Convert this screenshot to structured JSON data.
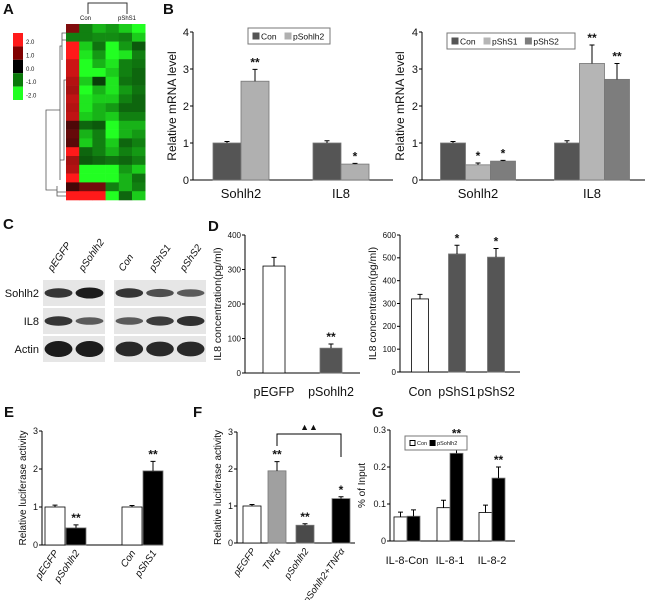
{
  "chart_data": [
    {
      "panel": "A",
      "type": "heatmap",
      "column_groups": [
        "Con",
        "pShS1"
      ],
      "color_scale": {
        "labels": [
          "2.0",
          "1.0",
          "0.0",
          "-1.0",
          "-2.0"
        ],
        "colors": [
          "#ff1a1a",
          "#800000",
          "#000000",
          "#0a7a0a",
          "#22ff22"
        ]
      },
      "values": [
        [
          1.0,
          -1.0,
          -1.4,
          -1.2,
          -1.6,
          -2.0
        ],
        [
          -1.0,
          -1.0,
          -1.1,
          -1.1,
          -1.0,
          -1.6
        ],
        [
          2.0,
          -1.6,
          -0.9,
          -2.0,
          -1.2,
          -0.7
        ],
        [
          2.0,
          -1.8,
          -1.2,
          -2.0,
          -1.8,
          -1.0
        ],
        [
          1.6,
          -2.0,
          -1.4,
          -1.8,
          -1.0,
          -0.9
        ],
        [
          1.6,
          -2.0,
          -2.0,
          -1.6,
          -1.0,
          -0.8
        ],
        [
          1.4,
          -1.6,
          -0.5,
          -1.8,
          -0.9,
          -0.8
        ],
        [
          1.3,
          -2.0,
          -1.4,
          -1.8,
          -1.2,
          -0.9
        ],
        [
          1.5,
          -1.8,
          -1.6,
          -1.6,
          -1.0,
          -0.8
        ],
        [
          1.4,
          -1.8,
          -1.4,
          -1.2,
          -0.8,
          -0.8
        ],
        [
          1.5,
          -1.6,
          -1.4,
          -1.6,
          -1.0,
          -1.0
        ],
        [
          0.6,
          -0.8,
          -0.7,
          -2.0,
          -1.4,
          -1.4
        ],
        [
          0.8,
          -1.4,
          -1.0,
          -2.0,
          -1.4,
          -1.2
        ],
        [
          0.7,
          -1.6,
          -1.0,
          -1.6,
          -0.8,
          -1.0
        ],
        [
          2.0,
          -0.8,
          -1.0,
          -1.4,
          -1.0,
          -1.2
        ],
        [
          1.3,
          -0.7,
          -0.8,
          -0.9,
          -0.8,
          -1.0
        ],
        [
          1.4,
          -2.0,
          -2.0,
          -2.0,
          -1.2,
          -1.6
        ],
        [
          2.0,
          -2.0,
          -2.0,
          -2.0,
          -1.4,
          -0.9
        ],
        [
          0.5,
          0.9,
          0.9,
          -1.0,
          -1.4,
          -1.0
        ],
        [
          2.0,
          2.0,
          2.0,
          -2.0,
          -0.8,
          -1.6
        ]
      ]
    },
    {
      "panel": "B",
      "type": "bar",
      "categories": [
        "Sohlh2",
        "IL8"
      ],
      "ylabel": "Relative mRNA level",
      "ylim": [
        0,
        4
      ],
      "yticks": [
        "0",
        "1",
        "2",
        "3",
        "4"
      ],
      "series": [
        {
          "name": "Con",
          "color": "#555555",
          "values": [
            1.0,
            1.0
          ],
          "errors": [
            0.04,
            0.06
          ],
          "sig": [
            "",
            ""
          ]
        },
        {
          "name": "pSohlh2",
          "color": "#b0b0b0",
          "values": [
            2.67,
            0.43
          ],
          "errors": [
            0.32,
            0.02
          ],
          "sig": [
            "**",
            "*"
          ]
        }
      ]
    },
    {
      "panel": "",
      "type": "bar",
      "categories": [
        "Sohlh2",
        "IL8"
      ],
      "ylabel": "Relative mRNA level",
      "ylim": [
        0,
        4
      ],
      "yticks": [
        "0",
        "1",
        "2",
        "3",
        "4"
      ],
      "series": [
        {
          "name": "Con",
          "color": "#555555",
          "values": [
            1.0,
            1.0
          ],
          "errors": [
            0.04,
            0.06
          ],
          "sig": [
            "",
            ""
          ]
        },
        {
          "name": "pShS1",
          "color": "#b5b5b5",
          "values": [
            0.41,
            3.15
          ],
          "errors": [
            0.05,
            0.5
          ],
          "sig": [
            "*",
            "**"
          ]
        },
        {
          "name": "pShS2",
          "color": "#7d7d7d",
          "values": [
            0.51,
            2.72
          ],
          "errors": [
            0.02,
            0.43
          ],
          "sig": [
            "*",
            "**"
          ]
        }
      ]
    },
    {
      "panel": "D",
      "type": "bar",
      "categories": [
        "pEGFP",
        "pSohlh2"
      ],
      "ylabel": "IL8 concentration(pg/ml)",
      "ylim": [
        0,
        400
      ],
      "yticks": [
        "0",
        "100",
        "200",
        "300",
        "400"
      ],
      "series": [
        {
          "name": "IL8",
          "colors": [
            "#ffffff",
            "#555555"
          ],
          "values": [
            310,
            72
          ],
          "errors": [
            25,
            12
          ],
          "sig": [
            "",
            "**"
          ]
        }
      ]
    },
    {
      "panel": "",
      "type": "bar",
      "categories": [
        "Con",
        "pShS1",
        "pShS2"
      ],
      "ylabel": "IL8 concentration(pg/ml)",
      "ylim": [
        0,
        600
      ],
      "yticks": [
        "0",
        "100",
        "200",
        "300",
        "400",
        "500",
        "600"
      ],
      "series": [
        {
          "name": "IL8",
          "colors": [
            "#ffffff",
            "#555555",
            "#555555"
          ],
          "values": [
            320,
            517,
            503
          ],
          "errors": [
            20,
            38,
            38
          ],
          "sig": [
            "",
            "*",
            "*"
          ]
        }
      ]
    },
    {
      "panel": "E",
      "type": "bar",
      "categories": [
        "pEGFP",
        "pSohlh2",
        "Con",
        "pShS1"
      ],
      "ylabel": "Relative luciferase activity",
      "ylim": [
        0,
        3
      ],
      "yticks": [
        "0",
        "1",
        "2",
        "3"
      ],
      "series": [
        {
          "name": "luciferase",
          "colors": [
            "#ffffff",
            "#000000",
            "#ffffff",
            "#000000"
          ],
          "values": [
            1.0,
            0.45,
            1.0,
            1.95
          ],
          "errors": [
            0.05,
            0.08,
            0.04,
            0.25
          ],
          "sig": [
            "",
            "**",
            "",
            "**"
          ]
        }
      ]
    },
    {
      "panel": "F",
      "type": "bar",
      "categories": [
        "pEGFP",
        "TNFα",
        "pSohlh2",
        "pSohlh2+TNFα"
      ],
      "ylabel": "Relative luciferase activity",
      "ylim": [
        0,
        3
      ],
      "yticks": [
        "0",
        "1",
        "2",
        "3"
      ],
      "comparison": {
        "between": [
          "TNFα",
          "pSohlh2+TNFα"
        ],
        "marker": "▲▲"
      },
      "series": [
        {
          "name": "luciferase",
          "colors": [
            "#ffffff",
            "#a0a0a0",
            "#4a4a4a",
            "#000000"
          ],
          "values": [
            1.0,
            1.95,
            0.48,
            1.2
          ],
          "errors": [
            0.04,
            0.25,
            0.04,
            0.05
          ],
          "sig": [
            "",
            "**",
            "**",
            "*"
          ]
        }
      ]
    },
    {
      "panel": "G",
      "type": "bar",
      "categories": [
        "IL-8-Con",
        "IL-8-1",
        "IL-8-2"
      ],
      "ylabel": "% of Input",
      "ylim": [
        0,
        0.3
      ],
      "yticks": [
        "0",
        "0.1",
        "0.2",
        "0.3"
      ],
      "series": [
        {
          "name": "Con",
          "color": "#ffffff",
          "values": [
            0.065,
            0.09,
            0.077
          ],
          "errors": [
            0.013,
            0.02,
            0.02
          ],
          "sig": [
            "",
            "",
            ""
          ]
        },
        {
          "name": "pSohlh2",
          "color": "#000000",
          "values": [
            0.067,
            0.237,
            0.17
          ],
          "errors": [
            0.017,
            0.035,
            0.03
          ],
          "sig": [
            "",
            "**",
            "**"
          ]
        }
      ]
    }
  ],
  "western_blot": {
    "panel": "C",
    "left_lanes": [
      "pEGFP",
      "pSohlh2"
    ],
    "right_lanes": [
      "Con",
      "pShS1",
      "pShS2"
    ],
    "rows": [
      "Sohlh2",
      "IL8",
      "Actin"
    ],
    "band_intensity_left": [
      [
        0.8,
        1.0
      ],
      [
        0.8,
        0.5
      ],
      [
        1.0,
        1.0
      ]
    ],
    "band_intensity_right": [
      [
        0.8,
        0.6,
        0.5
      ],
      [
        0.5,
        0.75,
        0.85
      ],
      [
        0.9,
        0.9,
        0.9
      ]
    ]
  }
}
